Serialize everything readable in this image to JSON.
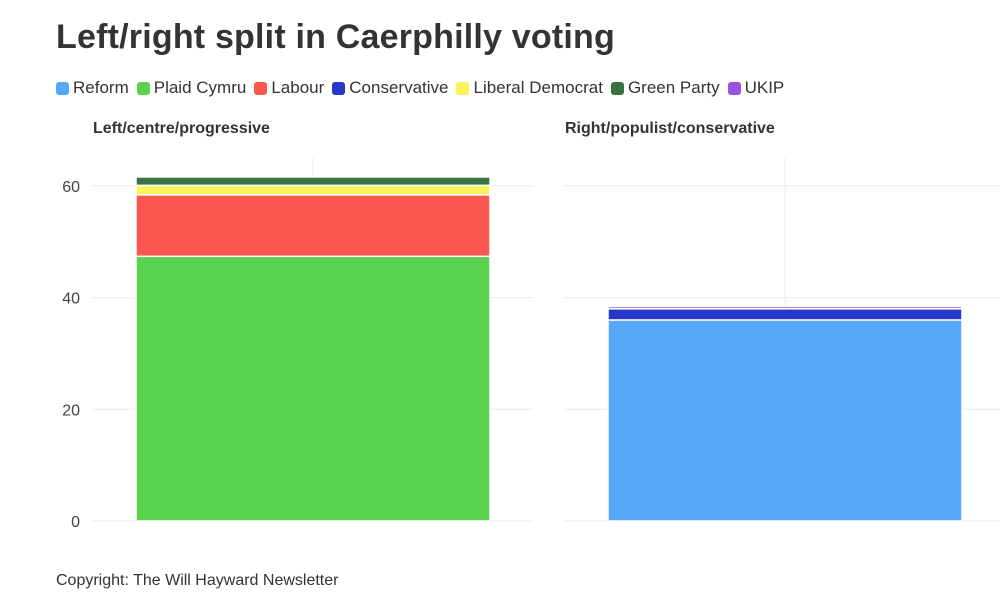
{
  "title": "Left/right split in Caerphilly voting",
  "legend": [
    {
      "name": "Reform",
      "color": "#55a8fa"
    },
    {
      "name": "Plaid Cymru",
      "color": "#5bd150"
    },
    {
      "name": "Labour",
      "color": "#fc5650"
    },
    {
      "name": "Conservative",
      "color": "#2738c9"
    },
    {
      "name": "Liberal Democrat",
      "color": "#fbf35a"
    },
    {
      "name": "Green Party",
      "color": "#3a7240"
    },
    {
      "name": "UKIP",
      "color": "#9b52e0"
    }
  ],
  "footer": "Copyright: The Will Hayward Newsletter",
  "chart_data": {
    "type": "bar",
    "stacked": true,
    "ylim": [
      0,
      65
    ],
    "yticks": [
      0,
      20,
      40,
      60
    ],
    "grid": true,
    "legend_position": "top-left",
    "panels": [
      {
        "title": "Left/centre/progressive",
        "segments": [
          {
            "series": "Plaid Cymru",
            "value": 47.4,
            "color": "#5bd150"
          },
          {
            "series": "Labour",
            "value": 11.0,
            "color": "#fc5650"
          },
          {
            "series": "Liberal Democrat",
            "value": 1.7,
            "color": "#fbf35a"
          },
          {
            "series": "Green Party",
            "value": 1.5,
            "color": "#3a7240"
          }
        ]
      },
      {
        "title": "Right/populist/conservative",
        "segments": [
          {
            "series": "Reform",
            "value": 36.0,
            "color": "#55a8fa"
          },
          {
            "series": "Conservative",
            "value": 2.0,
            "color": "#2738c9"
          },
          {
            "series": "UKIP",
            "value": 0.4,
            "color": "#9b52e0"
          }
        ]
      }
    ]
  }
}
